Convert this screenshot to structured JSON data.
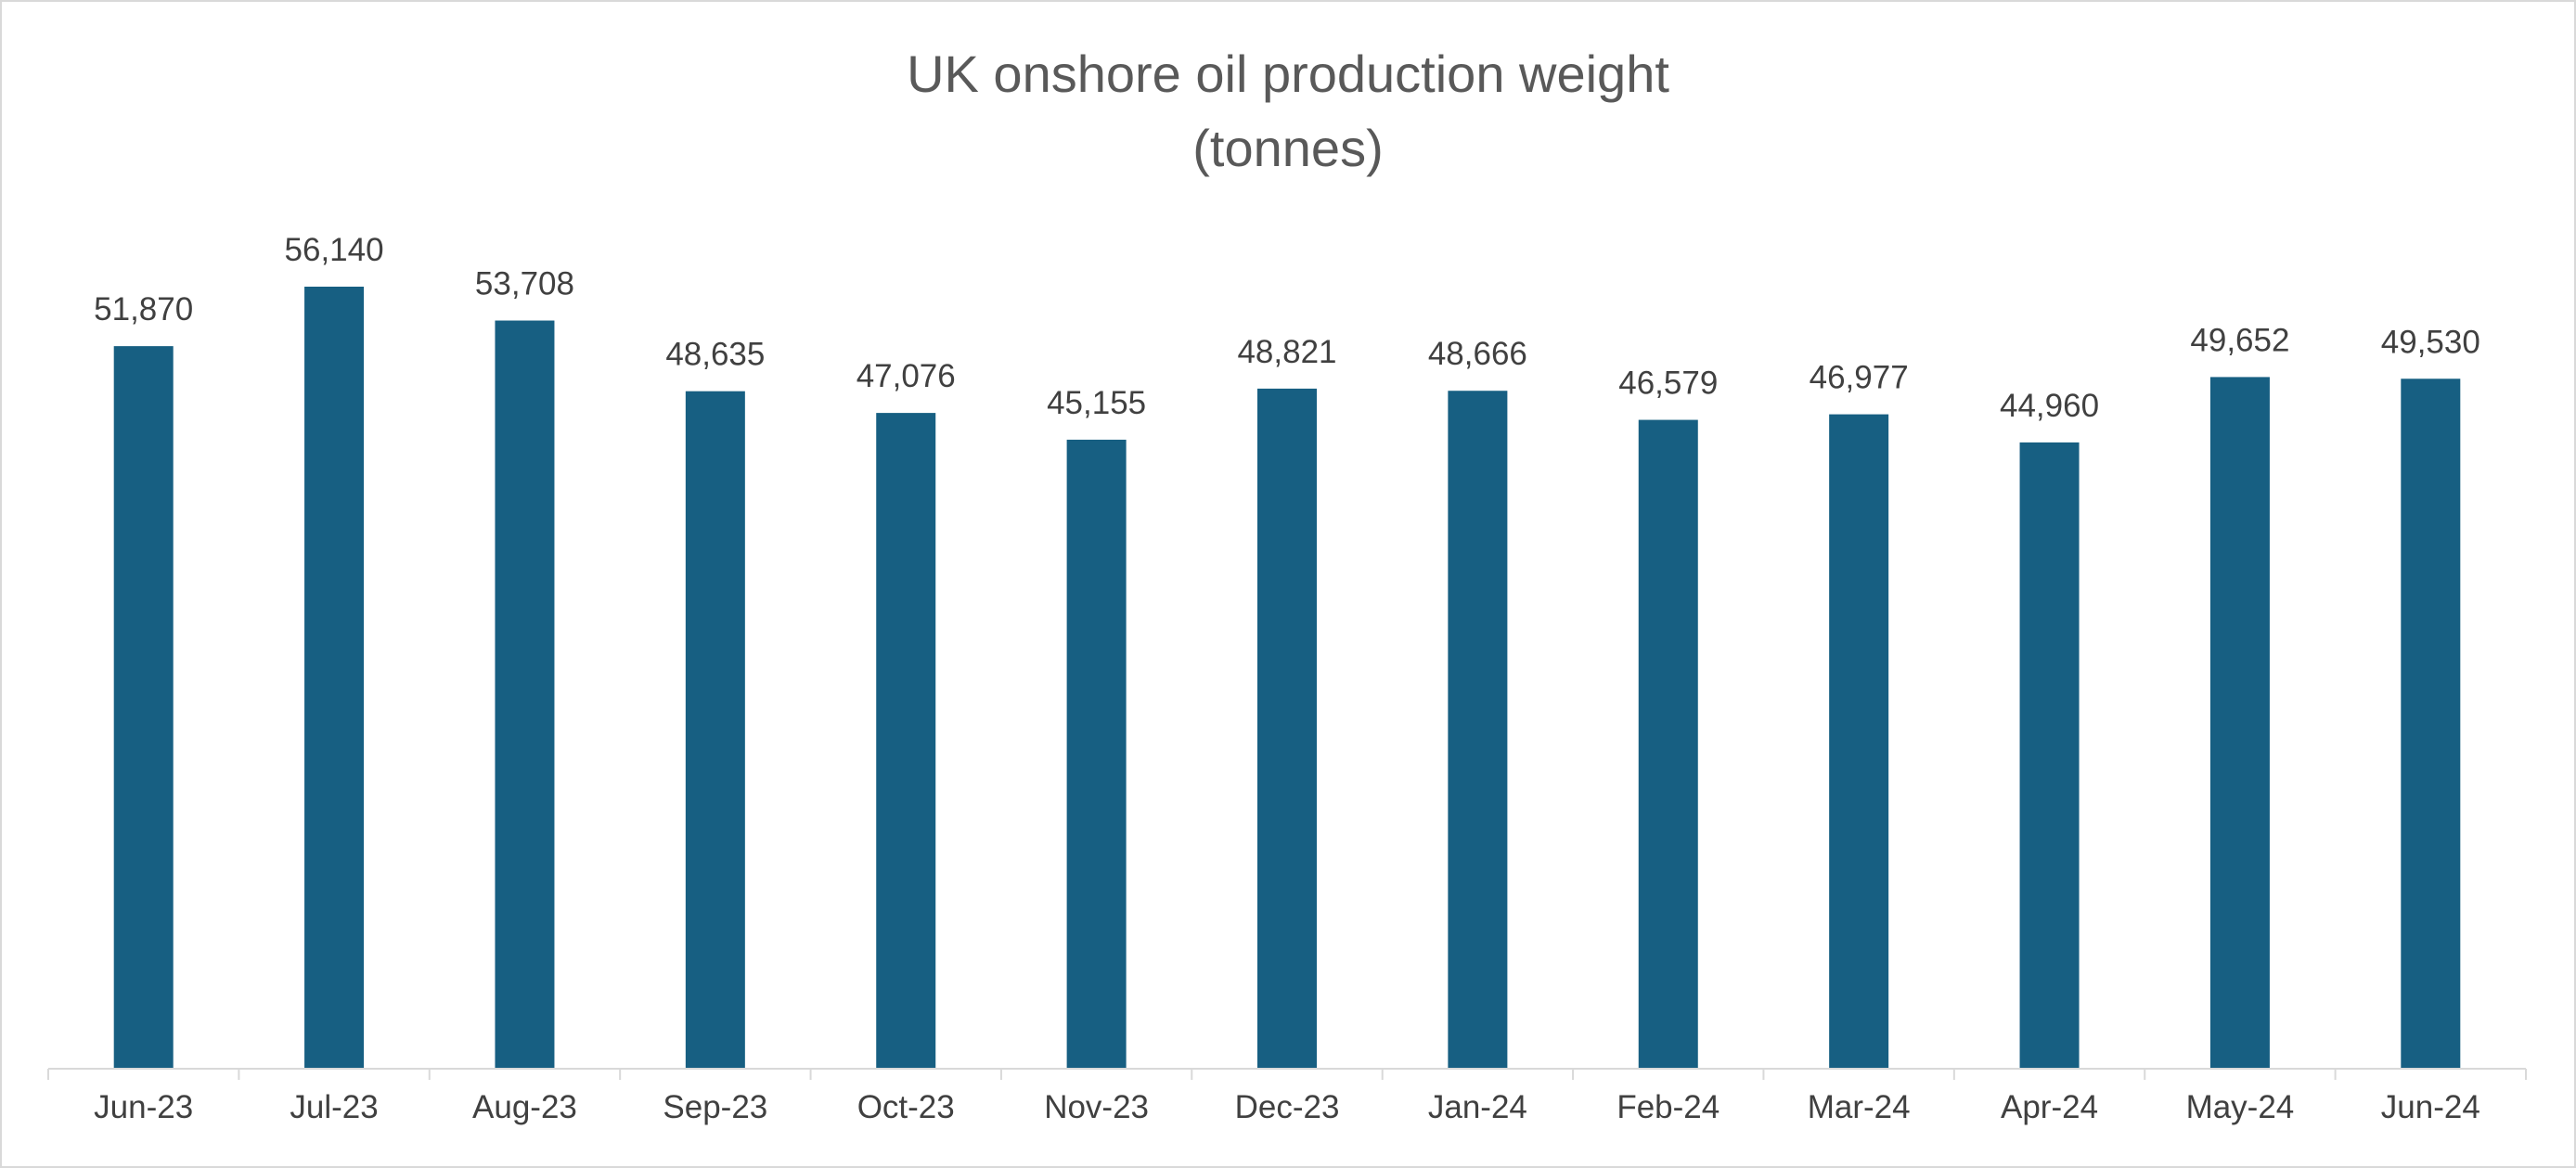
{
  "chart_data": {
    "type": "bar",
    "title": "UK onshore oil production weight",
    "subtitle": "(tonnes)",
    "categories": [
      "Jun-23",
      "Jul-23",
      "Aug-23",
      "Sep-23",
      "Oct-23",
      "Nov-23",
      "Dec-23",
      "Jan-24",
      "Feb-24",
      "Mar-24",
      "Apr-24",
      "May-24",
      "Jun-24"
    ],
    "values": [
      51870,
      56140,
      53708,
      48635,
      47076,
      45155,
      48821,
      48666,
      46579,
      46977,
      44960,
      49652,
      49530
    ],
    "data_labels": [
      "51,870",
      "56,140",
      "53,708",
      "48,635",
      "47,076",
      "45,155",
      "48,821",
      "48,666",
      "46,579",
      "46,977",
      "44,960",
      "49,652",
      "49,530"
    ],
    "ylim": [
      0,
      60000
    ],
    "grid": false,
    "legend": "none",
    "colors": {
      "bar": "#175f82",
      "axis": "#d9d9d9",
      "text": "#404040",
      "title": "#595959"
    }
  }
}
